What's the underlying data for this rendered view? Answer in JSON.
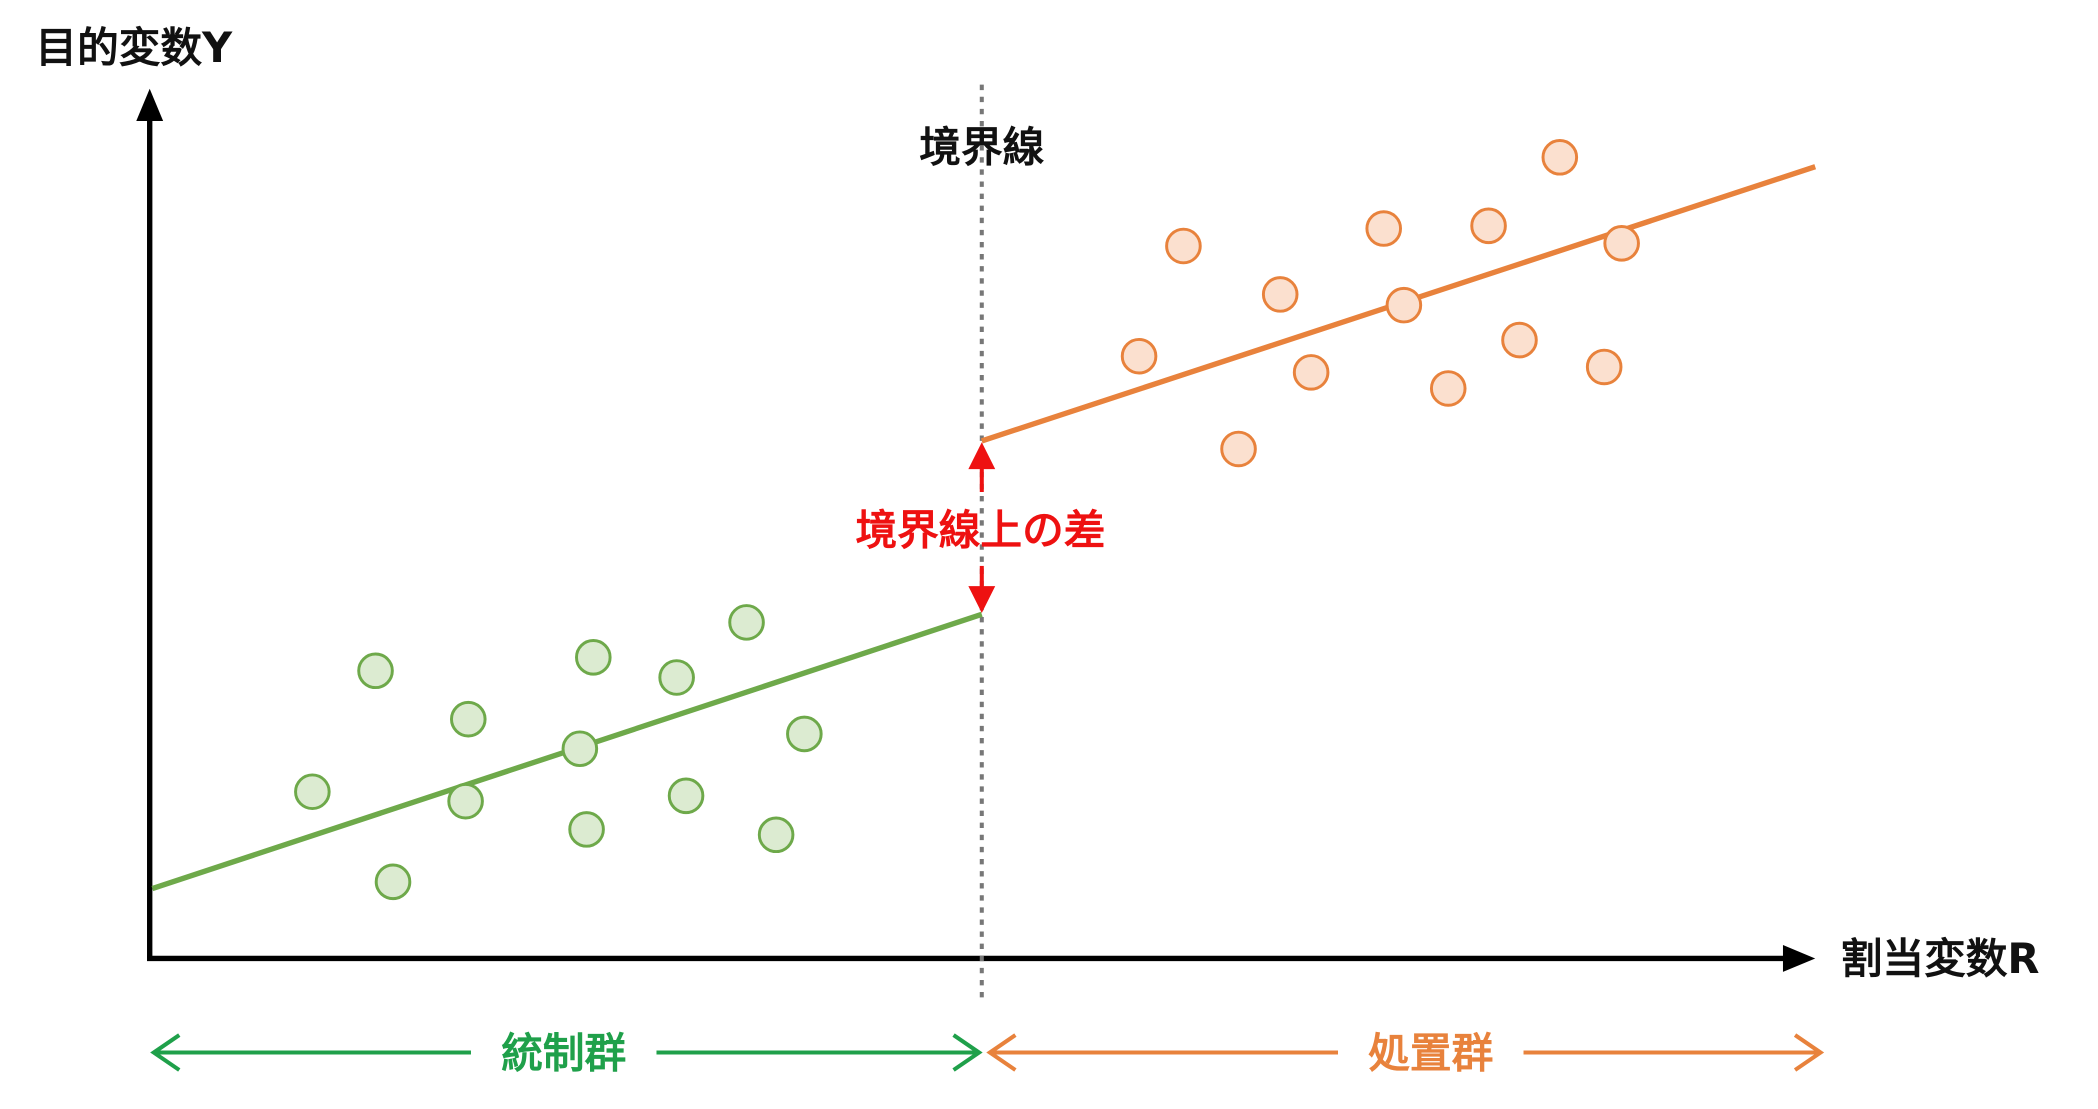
{
  "labels": {
    "y_axis": "目的変数Y",
    "x_axis": "割当変数R",
    "cutoff": "境界線",
    "gap": "境界線上の差",
    "control": "統制群",
    "treatment": "処置群"
  },
  "colors": {
    "control_line": "#6ea94a",
    "control_fill": "#dcebd1",
    "control_arrow": "#1fa04a",
    "treatment_line": "#e8823c",
    "treatment_fill": "#fbe0cf",
    "gap": "#ee1111",
    "axis": "#000000",
    "cutoff_line": "#777777"
  },
  "icons": {
    "gap_arrows": "double-arrow-vertical",
    "group_arrows": "double-arrow-horizontal"
  },
  "chart_data": {
    "type": "scatter",
    "x_label": "割当変数R",
    "y_label": "目的変数Y",
    "cutoff_label": "境界線",
    "control": {
      "label": "統制群",
      "points": [
        [
          232,
          589
        ],
        [
          279,
          499
        ],
        [
          348,
          535
        ],
        [
          346,
          596
        ],
        [
          292,
          656
        ],
        [
          431,
          557
        ],
        [
          441,
          489
        ],
        [
          436,
          617
        ],
        [
          503,
          504
        ],
        [
          510,
          592
        ],
        [
          555,
          463
        ],
        [
          598,
          546
        ],
        [
          577,
          621
        ]
      ],
      "fit": [
        [
          113,
          661
        ],
        [
          730,
          457
        ]
      ]
    },
    "treatment": {
      "label": "処置群",
      "points": [
        [
          880,
          183
        ],
        [
          847,
          265
        ],
        [
          921,
          334
        ],
        [
          952,
          219
        ],
        [
          975,
          277
        ],
        [
          1029,
          170
        ],
        [
          1044,
          227
        ],
        [
          1077,
          289
        ],
        [
          1107,
          168
        ],
        [
          1130,
          253
        ],
        [
          1160,
          117
        ],
        [
          1206,
          181
        ],
        [
          1193,
          273
        ]
      ],
      "fit": [
        [
          730,
          328
        ],
        [
          1350,
          124
        ]
      ]
    }
  }
}
